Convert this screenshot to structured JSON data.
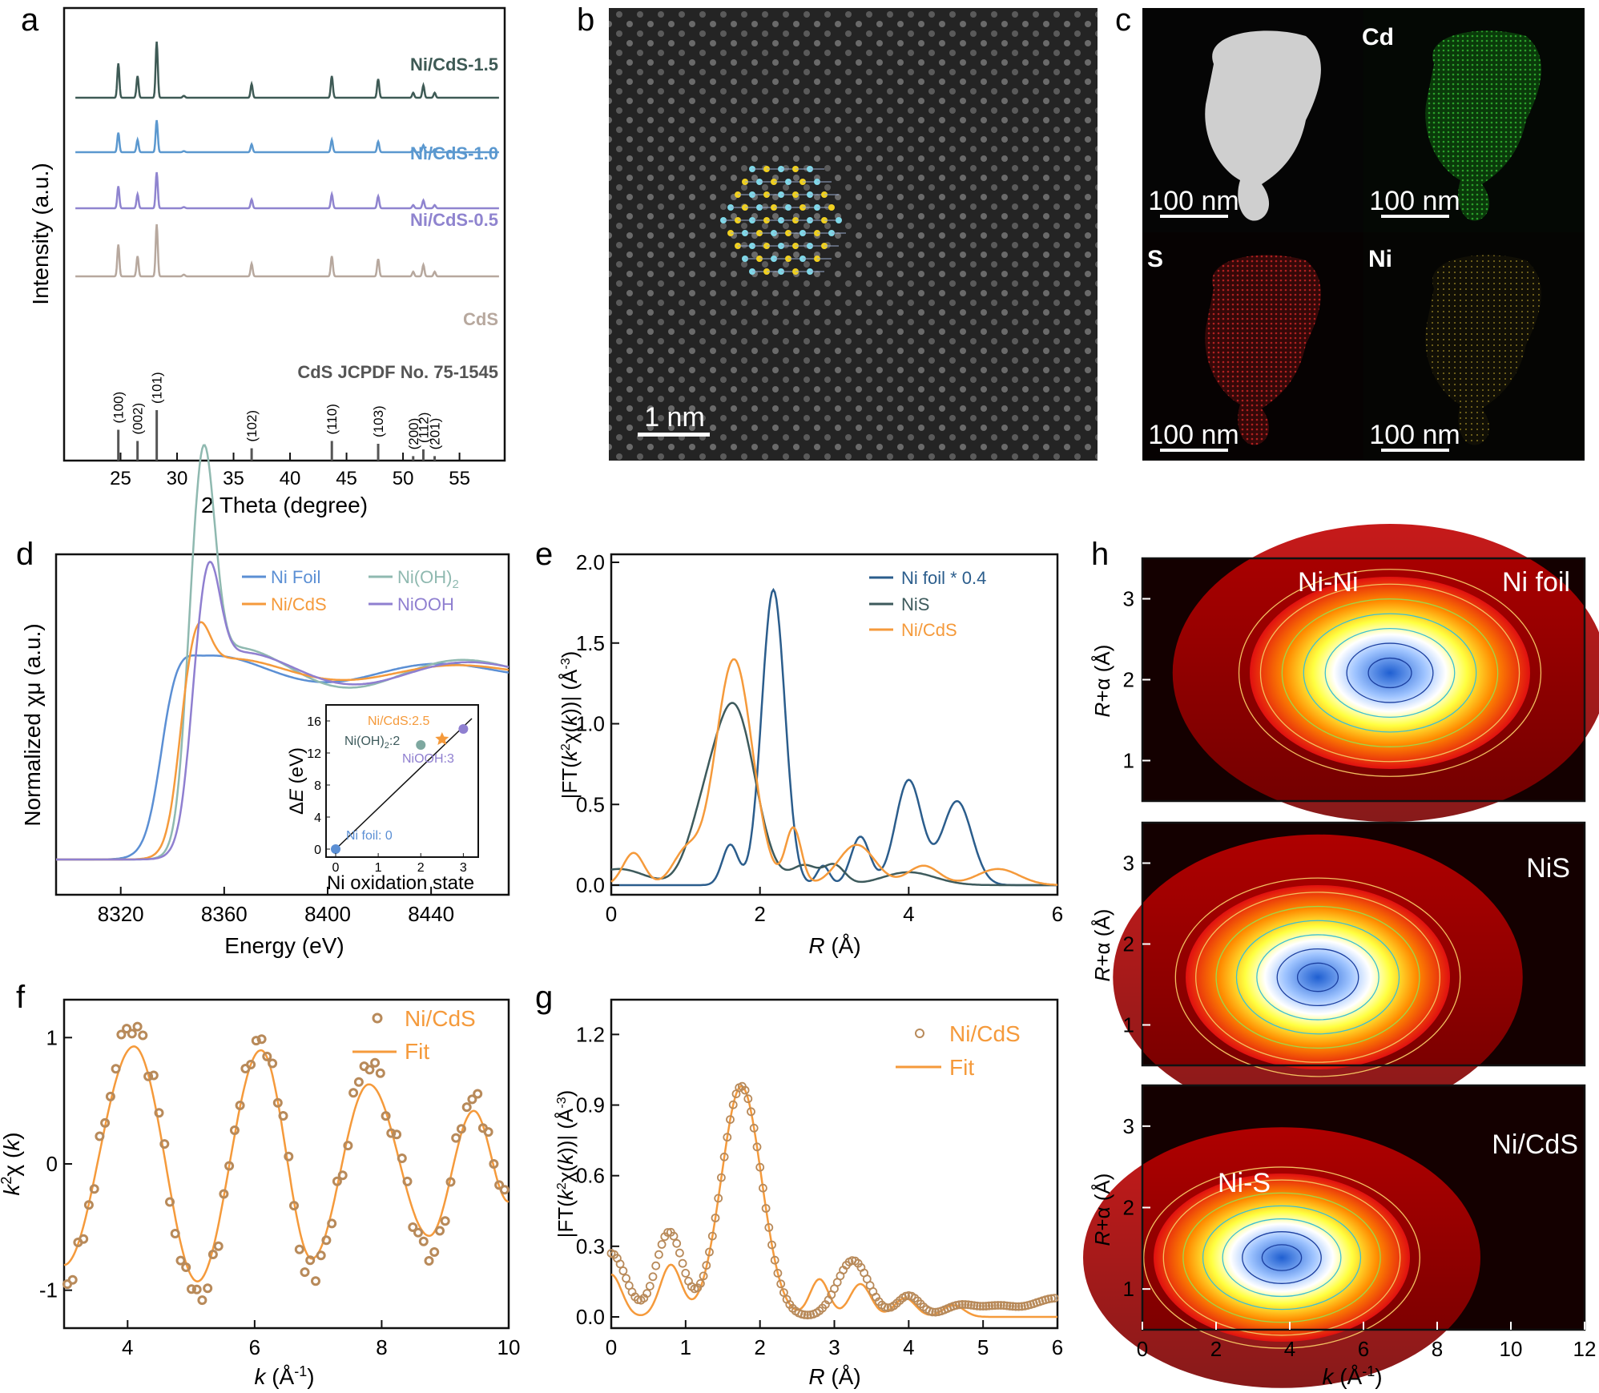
{
  "panel_letters": [
    "a",
    "b",
    "c",
    "d",
    "e",
    "f",
    "g",
    "h"
  ],
  "colors": {
    "ni_foil": "#5b8fd4",
    "ni_oh2": "#8fb9b0",
    "ni_cds": "#f59a3b",
    "niooh": "#8f7fd0",
    "nifoil_e": "#2b5d8c",
    "nis_e": "#3d5a5c",
    "cds": "#b7a89e",
    "cds05": "#8f84cf",
    "cds10": "#5b98cf",
    "cds15": "#3e5a55",
    "fitpt": "#b88a5a"
  },
  "panel_a": {
    "series_labels": [
      "Ni/CdS-1.5",
      "Ni/CdS-1.0",
      "Ni/CdS-0.5",
      "CdS"
    ],
    "ref_label": "CdS JCPDF No. 75-1545",
    "peaks": [
      {
        "x": 24.8,
        "label": "(100)",
        "h": 0.55
      },
      {
        "x": 26.5,
        "label": "(002)",
        "h": 0.35
      },
      {
        "x": 28.2,
        "label": "(101)",
        "h": 0.9
      },
      {
        "x": 36.6,
        "label": "(102)",
        "h": 0.22
      },
      {
        "x": 43.7,
        "label": "(110)",
        "h": 0.35
      },
      {
        "x": 47.8,
        "label": "(103)",
        "h": 0.3
      },
      {
        "x": 50.9,
        "label": "(200)",
        "h": 0.08
      },
      {
        "x": 51.8,
        "label": "(112)",
        "h": 0.2
      },
      {
        "x": 52.8,
        "label": "(201)",
        "h": 0.08
      }
    ],
    "xlabel": "2 Theta (degree)",
    "ylabel": "Intensity (a.u.)",
    "xticks": [
      "25",
      "30",
      "35",
      "40",
      "45",
      "50",
      "55"
    ]
  },
  "panel_b": {
    "scale": "1 nm"
  },
  "panel_c": {
    "labels": [
      "Cd",
      "S",
      "Ni"
    ],
    "scales": [
      "100 nm",
      "100 nm",
      "100 nm",
      "100 nm"
    ]
  },
  "chart_data": [
    {
      "type": "line",
      "panel": "d",
      "series": [
        {
          "name": "Ni Foil"
        },
        {
          "name": "Ni(OH)2"
        },
        {
          "name": "Ni/CdS"
        },
        {
          "name": "NiOOH"
        }
      ],
      "xlabel": "Energy (eV)",
      "ylabel": "Normalized χμ (a.u.)",
      "xticks": [
        "8320",
        "8360",
        "8400",
        "8440"
      ],
      "inset": {
        "type": "scatter",
        "xlabel": "Ni oxidation state",
        "ylabel": "ΔE (eV)",
        "xticks": [
          "0",
          "1",
          "2",
          "3"
        ],
        "yticks": [
          "0",
          "4",
          "8",
          "12",
          "16"
        ],
        "points": [
          {
            "name": "Ni foil: 0",
            "x": 0,
            "y": 0
          },
          {
            "name": "Ni(OH)2:2",
            "x": 2,
            "y": 13
          },
          {
            "name": "Ni/CdS:2.5",
            "x": 2.5,
            "y": 13.8
          },
          {
            "name": "NiOOH:3",
            "x": 3,
            "y": 15
          }
        ],
        "labels": {
          "nicds": "Ni/CdS:2.5",
          "nioh": "Ni(OH)",
          "nioh2": ":2",
          "niooh": "NiOOH:3",
          "foil": "Ni foil: 0"
        }
      }
    },
    {
      "type": "line",
      "panel": "e",
      "series": [
        {
          "name": "Ni foil * 0.4"
        },
        {
          "name": "NiS"
        },
        {
          "name": "Ni/CdS"
        }
      ],
      "xlabel": "R (Å)",
      "ylabel": "|FT(k2χ(k))| (Å-3)",
      "xticks": [
        "0",
        "2",
        "4",
        "6"
      ],
      "yticks": [
        "0.0",
        "0.5",
        "1.0",
        "1.5",
        "2.0"
      ],
      "xlim": [
        0,
        6
      ],
      "ylim": [
        0,
        2.0
      ]
    },
    {
      "type": "scatter",
      "panel": "f",
      "series": [
        {
          "name": "Ni/CdS"
        },
        {
          "name": "Fit"
        }
      ],
      "xlabel": "k (Å-1)",
      "ylabel": "k2χ (k)",
      "xticks": [
        "4",
        "6",
        "8",
        "10"
      ],
      "yticks": [
        "-1",
        "0",
        "1"
      ],
      "xlim": [
        3,
        10
      ],
      "ylim": [
        -1.3,
        1.3
      ]
    },
    {
      "type": "scatter",
      "panel": "g",
      "series": [
        {
          "name": "Ni/CdS"
        },
        {
          "name": "Fit"
        }
      ],
      "xlabel": "R (Å)",
      "ylabel": "|FT(k2χ(k))| (Å-3)",
      "xticks": [
        "0",
        "1",
        "2",
        "3",
        "4",
        "5",
        "6"
      ],
      "yticks": [
        "0.0",
        "0.3",
        "0.6",
        "0.9",
        "1.2"
      ],
      "xlim": [
        0,
        6
      ],
      "ylim": [
        0,
        1.3
      ]
    },
    {
      "type": "heatmap",
      "panel": "h",
      "maps": [
        {
          "name": "Ni foil",
          "annot": "Ni-Ni"
        },
        {
          "name": "NiS",
          "annot": ""
        },
        {
          "name": "Ni/CdS",
          "annot": "Ni-S"
        }
      ],
      "xlabel": "k (Å-1)",
      "ylabel": "R+α (Å)",
      "xticks": [
        "0",
        "2",
        "4",
        "6",
        "8",
        "10",
        "12"
      ],
      "yticks": [
        "1",
        "2",
        "3"
      ]
    }
  ]
}
